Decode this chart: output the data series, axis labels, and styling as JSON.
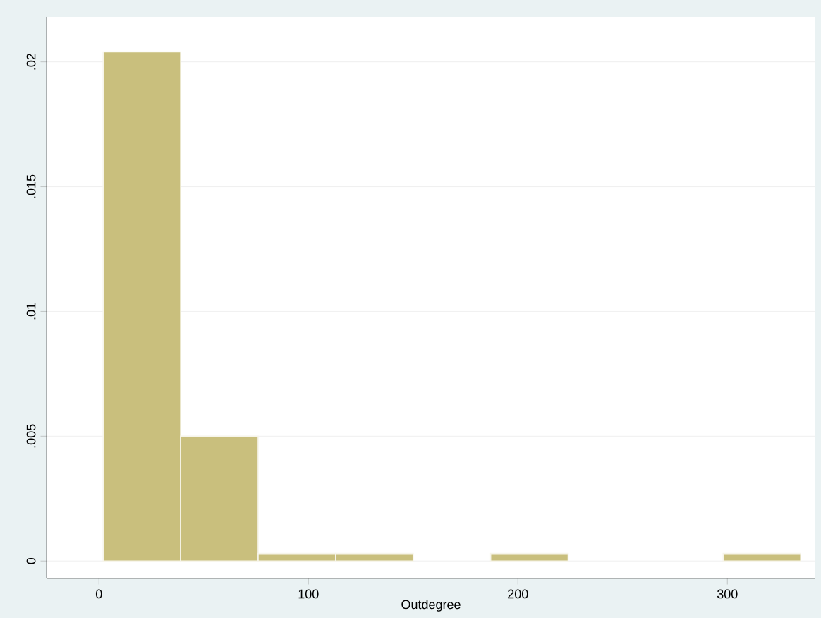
{
  "chart_data": {
    "type": "histogram",
    "xlabel": "Outdegree",
    "bins": [
      2,
      39,
      76,
      113,
      150,
      187,
      224,
      261,
      298,
      335
    ],
    "values": [
      0.0204,
      0.005,
      0.0003,
      0.0003,
      0,
      0.0003,
      0,
      0,
      0.0003
    ],
    "color": "#c9bf7d",
    "xlim": [
      -25,
      342
    ],
    "xticks": [
      0,
      100,
      200,
      300
    ],
    "ylim": [
      -0.0007,
      0.0218
    ],
    "yticks": [
      {
        "value": 0,
        "label": "0"
      },
      {
        "value": 0.005,
        "label": ".005"
      },
      {
        "value": 0.01,
        "label": ".01"
      },
      {
        "value": 0.015,
        "label": ".015"
      },
      {
        "value": 0.02,
        "label": ".02"
      }
    ],
    "grid": "y"
  }
}
